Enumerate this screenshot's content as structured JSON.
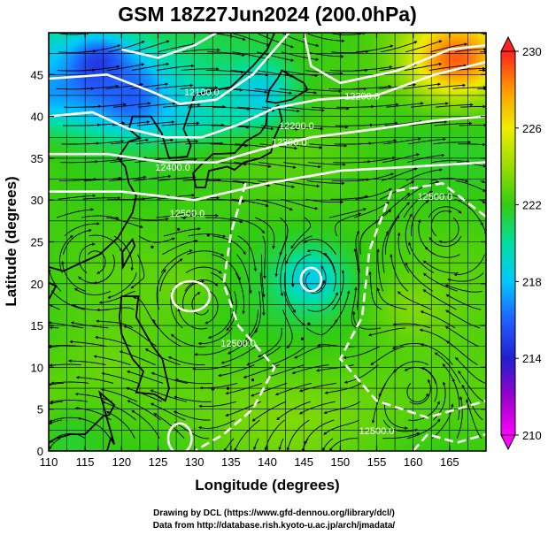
{
  "title": "GSM 18Z27Jun2024 (200.0hPa)",
  "footer": {
    "line1": "Drawing by DCL (https://www.gfd-dennou.org/library/dcl/)",
    "line2": "Data from http://database.rish.kyoto-u.ac.jp/arch/jmadata/"
  },
  "colors": {
    "land": "#000000",
    "contour": "#ffffff",
    "streamline": "#000000",
    "grid": "#000000"
  },
  "chart_data": {
    "type": "heatmap",
    "title": "GSM 18Z27Jun2024 (200.0hPa)",
    "xlabel": "Longitude (degrees)",
    "ylabel": "Latitude  (degrees)",
    "xlim": [
      110,
      170
    ],
    "ylim": [
      0,
      50
    ],
    "xticks": [
      110,
      115,
      120,
      125,
      130,
      135,
      140,
      145,
      150,
      155,
      160,
      165
    ],
    "yticks": [
      0,
      5,
      10,
      15,
      20,
      25,
      30,
      35,
      40,
      45
    ],
    "grid": true,
    "colorbar": {
      "ticks": [
        210,
        214,
        218,
        222,
        226,
        230
      ],
      "range": [
        210,
        230
      ],
      "stops": [
        {
          "v": 210,
          "c": "#ff00ff"
        },
        {
          "v": 212,
          "c": "#9900cc"
        },
        {
          "v": 214,
          "c": "#2020d0"
        },
        {
          "v": 216,
          "c": "#2060ff"
        },
        {
          "v": 218,
          "c": "#00c8ff"
        },
        {
          "v": 220,
          "c": "#00e0a0"
        },
        {
          "v": 222,
          "c": "#33cc11"
        },
        {
          "v": 224,
          "c": "#99dd00"
        },
        {
          "v": 226,
          "c": "#eeee00"
        },
        {
          "v": 228,
          "c": "#ff9900"
        },
        {
          "v": 230,
          "c": "#ff2222"
        }
      ]
    },
    "contour_labels": [
      {
        "text": "12100.0",
        "lon": 131,
        "lat": 42.5
      },
      {
        "text": "12200.0",
        "lon": 153,
        "lat": 42
      },
      {
        "text": "12200.0",
        "lon": 144,
        "lat": 38.5
      },
      {
        "text": "12300.0",
        "lon": 143,
        "lat": 36.5
      },
      {
        "text": "12400.0",
        "lon": 127,
        "lat": 33.5
      },
      {
        "text": "12500.0",
        "lon": 129,
        "lat": 28
      },
      {
        "text": "12500.0",
        "lon": 163,
        "lat": 30
      },
      {
        "text": "12500.0",
        "lon": 136,
        "lat": 12.5
      },
      {
        "text": "12500.0",
        "lon": 155,
        "lat": 2
      }
    ],
    "field_features": [
      {
        "kind": "temperature-max",
        "lon": 166,
        "lat": 47,
        "value": 229
      },
      {
        "kind": "temperature-min",
        "lon": 117,
        "lat": 46,
        "value": 214.5
      },
      {
        "kind": "temperature-min",
        "lon": 121,
        "lat": 43,
        "value": 216
      },
      {
        "kind": "temperature-min",
        "lon": 139,
        "lat": 43,
        "value": 218.5
      },
      {
        "kind": "temperature-min",
        "lon": 146,
        "lat": 20.5,
        "value": 218.5
      },
      {
        "kind": "temperature-min",
        "lon": 113,
        "lat": 2,
        "value": 221
      },
      {
        "kind": "temperature-max",
        "lon": 160,
        "lat": 17,
        "value": 223.5
      },
      {
        "kind": "temperature-max",
        "lon": 128,
        "lat": 20,
        "value": 223
      },
      {
        "kind": "temperature-max",
        "lon": 118,
        "lat": 12,
        "value": 222.8
      }
    ],
    "circulation_centers": [
      {
        "kind": "cyclonic",
        "lon": 146,
        "lat": 20.5
      },
      {
        "kind": "anticyclonic",
        "lon": 131,
        "lat": 17
      },
      {
        "kind": "anticyclonic",
        "lon": 164,
        "lat": 28.5
      },
      {
        "kind": "cyclonic",
        "lon": 161,
        "lat": 9
      },
      {
        "kind": "anticyclonic",
        "lon": 116,
        "lat": 23
      }
    ]
  }
}
